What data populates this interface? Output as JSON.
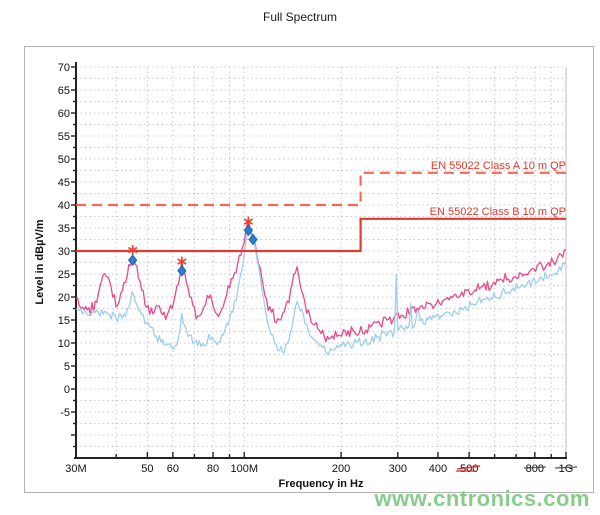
{
  "title": "Full Spectrum",
  "watermark": "www.cntronics.com",
  "chart_data": {
    "type": "line",
    "title": "Full Spectrum",
    "xlabel": "Frequency in Hz",
    "ylabel": "Level in dBµV/m",
    "x_scale": "log",
    "x_range_mhz": [
      30,
      1000
    ],
    "y_range": [
      -15,
      70
    ],
    "grid": {
      "style": "dotted",
      "h_step_db": 2.5,
      "v_lines_mhz": [
        40,
        50,
        60,
        70,
        80,
        90,
        100,
        200,
        300,
        400,
        500,
        600,
        700,
        800,
        900
      ]
    },
    "x_ticks": [
      {
        "label": "30M",
        "mhz": 30
      },
      {
        "label": "50",
        "mhz": 50
      },
      {
        "label": "60",
        "mhz": 60
      },
      {
        "label": "80",
        "mhz": 80
      },
      {
        "label": "100M",
        "mhz": 100
      },
      {
        "label": "200",
        "mhz": 200
      },
      {
        "label": "300",
        "mhz": 300
      },
      {
        "label": "400",
        "mhz": 400
      },
      {
        "label": "500",
        "mhz": 500,
        "red_scribble": true
      },
      {
        "label": "800",
        "mhz": 800,
        "dark_strike": true
      },
      {
        "label": "1G",
        "mhz": 1000,
        "dark_strike": true
      }
    ],
    "x_minor_ticks_mhz": [
      40,
      70,
      90,
      600,
      700,
      900
    ],
    "y_tick_labels": [
      70,
      65,
      60,
      55,
      50,
      45,
      40,
      35,
      30,
      25,
      20,
      15,
      10,
      5,
      0,
      -5
    ],
    "limits": [
      {
        "label": "EN 55022 Class A 10 m QP",
        "style": "dashed",
        "color": "#ef6a55",
        "points_mhz_db": [
          [
            30,
            40
          ],
          [
            230,
            40
          ],
          [
            230,
            47
          ],
          [
            1000,
            47
          ]
        ]
      },
      {
        "label": "EN 55022 Class B 10 m QP",
        "style": "solid",
        "color": "#e23b2d",
        "points_mhz_db": [
          [
            30,
            30
          ],
          [
            230,
            30
          ],
          [
            230,
            37
          ],
          [
            1000,
            37
          ]
        ]
      }
    ],
    "series": [
      {
        "id": "pink-trace",
        "color": "#e8498a",
        "noise_db": 1.5,
        "points": [
          [
            30,
            19.5
          ],
          [
            31,
            18.6
          ],
          [
            32,
            17.8
          ],
          [
            33,
            17.2
          ],
          [
            34,
            18
          ],
          [
            35,
            20
          ],
          [
            36,
            23
          ],
          [
            37,
            25.5
          ],
          [
            38,
            24
          ],
          [
            39,
            21
          ],
          [
            40,
            18
          ],
          [
            41,
            19
          ],
          [
            42,
            21.5
          ],
          [
            43,
            24.5
          ],
          [
            44,
            27.5
          ],
          [
            45,
            30
          ],
          [
            46,
            27.5
          ],
          [
            47,
            24
          ],
          [
            48,
            21
          ],
          [
            50,
            17.5
          ],
          [
            52,
            16
          ],
          [
            54,
            18.5
          ],
          [
            56,
            15.5
          ],
          [
            58,
            16.5
          ],
          [
            60,
            18
          ],
          [
            62,
            22
          ],
          [
            63,
            25
          ],
          [
            64,
            27.5
          ],
          [
            65,
            26
          ],
          [
            66,
            23.5
          ],
          [
            68,
            20
          ],
          [
            70,
            17.5
          ],
          [
            72,
            15.5
          ],
          [
            74,
            16.5
          ],
          [
            76,
            18.5
          ],
          [
            78,
            20.5
          ],
          [
            80,
            18.5
          ],
          [
            82,
            15.8
          ],
          [
            84,
            16.2
          ],
          [
            86,
            18
          ],
          [
            88,
            20.5
          ],
          [
            90,
            22.5
          ],
          [
            93,
            25
          ],
          [
            96,
            28
          ],
          [
            99,
            31.5
          ],
          [
            101,
            33.5
          ],
          [
            103,
            36.2
          ],
          [
            105,
            34
          ],
          [
            107,
            32.8
          ],
          [
            109,
            30
          ],
          [
            112,
            26
          ],
          [
            115,
            22
          ],
          [
            118,
            19
          ],
          [
            122,
            16.5
          ],
          [
            126,
            15
          ],
          [
            130,
            15.5
          ],
          [
            134,
            17
          ],
          [
            138,
            20
          ],
          [
            142,
            24
          ],
          [
            146,
            25.5
          ],
          [
            150,
            23
          ],
          [
            155,
            18
          ],
          [
            160,
            15.5
          ],
          [
            165,
            14
          ],
          [
            170,
            13
          ],
          [
            176,
            11.5
          ],
          [
            182,
            11
          ],
          [
            190,
            11.3
          ],
          [
            200,
            11.8
          ],
          [
            210,
            12.4
          ],
          [
            220,
            12.8
          ],
          [
            230,
            12.6
          ],
          [
            240,
            13.2
          ],
          [
            250,
            13.8
          ],
          [
            262,
            14.3
          ],
          [
            275,
            14.8
          ],
          [
            290,
            15.4
          ],
          [
            305,
            16
          ],
          [
            320,
            16.5
          ],
          [
            340,
            17.1
          ],
          [
            360,
            17.7
          ],
          [
            385,
            18.3
          ],
          [
            410,
            18.9
          ],
          [
            440,
            19.6
          ],
          [
            470,
            20.3
          ],
          [
            500,
            21
          ],
          [
            535,
            21.8
          ],
          [
            570,
            22.4
          ],
          [
            610,
            23.2
          ],
          [
            650,
            23.8
          ],
          [
            700,
            24.6
          ],
          [
            750,
            25.3
          ],
          [
            800,
            26.2
          ],
          [
            850,
            27
          ],
          [
            900,
            27.8
          ],
          [
            950,
            28.6
          ],
          [
            980,
            29.2
          ],
          [
            1000,
            30.5
          ]
        ]
      },
      {
        "id": "blue-trace",
        "color": "#9ecdf0",
        "noise_db": 1.4,
        "points": [
          [
            30,
            17.5
          ],
          [
            32,
            16.8
          ],
          [
            34,
            16.2
          ],
          [
            36,
            16.4
          ],
          [
            38,
            16.8
          ],
          [
            40,
            15.4
          ],
          [
            42,
            15.8
          ],
          [
            44,
            18
          ],
          [
            45,
            21
          ],
          [
            46,
            18.5
          ],
          [
            48,
            15.8
          ],
          [
            50,
            14.2
          ],
          [
            52,
            12.8
          ],
          [
            54,
            11.2
          ],
          [
            56,
            10.2
          ],
          [
            58,
            9.2
          ],
          [
            60,
            8.6
          ],
          [
            61,
            8.8
          ],
          [
            62,
            9.5
          ],
          [
            63,
            12
          ],
          [
            64,
            15.8
          ],
          [
            65,
            13.8
          ],
          [
            66,
            12
          ],
          [
            68,
            10.8
          ],
          [
            70,
            10.4
          ],
          [
            72,
            9.8
          ],
          [
            74,
            9.5
          ],
          [
            76,
            10.2
          ],
          [
            78,
            11.4
          ],
          [
            80,
            10.8
          ],
          [
            82,
            10
          ],
          [
            84,
            10.5
          ],
          [
            86,
            11.5
          ],
          [
            88,
            13
          ],
          [
            90,
            15
          ],
          [
            93,
            18
          ],
          [
            96,
            22
          ],
          [
            99,
            27
          ],
          [
            101,
            31
          ],
          [
            103,
            34.4
          ],
          [
            105,
            33
          ],
          [
            107,
            32.3
          ],
          [
            109,
            29
          ],
          [
            112,
            24
          ],
          [
            115,
            19
          ],
          [
            118,
            15
          ],
          [
            122,
            11.5
          ],
          [
            126,
            9.5
          ],
          [
            130,
            8.2
          ],
          [
            134,
            8.8
          ],
          [
            138,
            11
          ],
          [
            142,
            15
          ],
          [
            146,
            19.5
          ],
          [
            150,
            18
          ],
          [
            155,
            14
          ],
          [
            160,
            11.5
          ],
          [
            165,
            10.2
          ],
          [
            170,
            9.6
          ],
          [
            176,
            8.8
          ],
          [
            182,
            8.5
          ],
          [
            190,
            8.8
          ],
          [
            200,
            9.4
          ],
          [
            210,
            9.9
          ],
          [
            220,
            10.3
          ],
          [
            230,
            10.1
          ],
          [
            240,
            10.6
          ],
          [
            250,
            11.1
          ],
          [
            262,
            11.6
          ],
          [
            275,
            12
          ],
          [
            288,
            12.5
          ],
          [
            293,
            12.8
          ],
          [
            296,
            27.5
          ],
          [
            299,
            13
          ],
          [
            305,
            13.2
          ],
          [
            320,
            13.7
          ],
          [
            327,
            13.9
          ],
          [
            330,
            21
          ],
          [
            333,
            14
          ],
          [
            340,
            14.3
          ],
          [
            349,
            17.5
          ],
          [
            352,
            14.5
          ],
          [
            360,
            14.8
          ],
          [
            385,
            15.4
          ],
          [
            410,
            16
          ],
          [
            440,
            16.7
          ],
          [
            470,
            17.4
          ],
          [
            500,
            18.1
          ],
          [
            535,
            18.9
          ],
          [
            570,
            19.5
          ],
          [
            610,
            20.3
          ],
          [
            650,
            20.9
          ],
          [
            700,
            21.7
          ],
          [
            750,
            22.4
          ],
          [
            800,
            23.3
          ],
          [
            850,
            24.1
          ],
          [
            900,
            24.9
          ],
          [
            950,
            25.7
          ],
          [
            1000,
            27.5
          ]
        ]
      }
    ],
    "markers": {
      "diamond_color": "#2f7fd0",
      "diamond_edge": "#1a5fa8",
      "asterisk_color": "#e8402f",
      "diamonds_mhz_db": [
        [
          45,
          28
        ],
        [
          64,
          25.7
        ],
        [
          103,
          34.5
        ],
        [
          106.5,
          32.5
        ]
      ],
      "asterisks_mhz_db": [
        [
          45,
          30.2
        ],
        [
          64,
          27.7
        ],
        [
          103,
          36.4
        ]
      ]
    }
  },
  "colors": {
    "grid": "#c8c8c8",
    "axis": "#222222",
    "tick_text": "#111111",
    "limit_label": "#e0392b",
    "watermark_green": "#76c67a",
    "scribble_red": "#cc2222"
  }
}
